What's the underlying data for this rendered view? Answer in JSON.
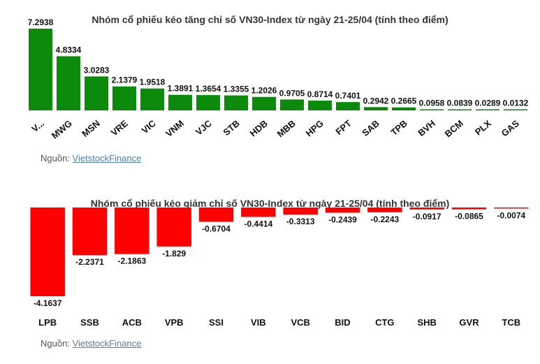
{
  "colors": {
    "gain": "#0b8a0b",
    "loss": "#ff0000"
  },
  "chart_data": [
    {
      "type": "bar",
      "title": "Nhóm cổ phiếu kéo tăng chỉ số VN30-Index từ ngày 21-25/04 (tính theo điểm)",
      "categories": [
        "V...",
        "MWG",
        "MSN",
        "VRE",
        "VIC",
        "VNM",
        "VJC",
        "STB",
        "HDB",
        "MBB",
        "HPG",
        "FPT",
        "SAB",
        "TPB",
        "BVH",
        "BCM",
        "PLX",
        "GAS"
      ],
      "values": [
        7.2938,
        4.8334,
        3.0283,
        2.1379,
        1.9518,
        1.3891,
        1.3654,
        1.3355,
        1.2026,
        0.9705,
        0.8714,
        0.7401,
        0.2942,
        0.2665,
        0.0958,
        0.0839,
        0.0289,
        0.0132
      ],
      "value_labels": [
        "7.2938",
        "4.8334",
        "3.0283",
        "2.1379",
        "1.9518",
        "1.3891",
        "1.3654",
        "1.3355",
        "1.2026",
        "0.9705",
        "0.8714",
        "0.7401",
        "0.2942",
        "0.2665",
        "0.0958",
        "0.0839",
        "0.0289",
        "0.0132"
      ],
      "color": "#0b8a0b",
      "ylim": [
        0,
        7.2938
      ],
      "xlabel": "",
      "ylabel": "",
      "grid": false,
      "source_label": "Nguồn: ",
      "source_link": "VietstockFinance"
    },
    {
      "type": "bar",
      "title": "Nhóm cổ phiếu kéo giảm chỉ số VN30-Index từ ngày 21-25/04 (tính theo điểm)",
      "categories": [
        "LPB",
        "SSB",
        "ACB",
        "VPB",
        "SSI",
        "VIB",
        "VCB",
        "BID",
        "CTG",
        "SHB",
        "GVR",
        "TCB"
      ],
      "values": [
        -4.1637,
        -2.2371,
        -2.1863,
        -1.829,
        -0.6704,
        -0.4414,
        -0.3313,
        -0.2439,
        -0.2243,
        -0.0917,
        -0.0865,
        -0.0074
      ],
      "value_labels": [
        "-4.1637",
        "-2.2371",
        "-2.1863",
        "-1.829",
        "-0.6704",
        "-0.4414",
        "-0.3313",
        "-0.2439",
        "-0.2243",
        "-0.0917",
        "-0.0865",
        "-0.0074"
      ],
      "color": "#ff0000",
      "ylim": [
        -4.1637,
        0
      ],
      "xlabel": "",
      "ylabel": "",
      "grid": false,
      "source_label": "Nguồn: ",
      "source_link": "VietstockFinance"
    }
  ]
}
